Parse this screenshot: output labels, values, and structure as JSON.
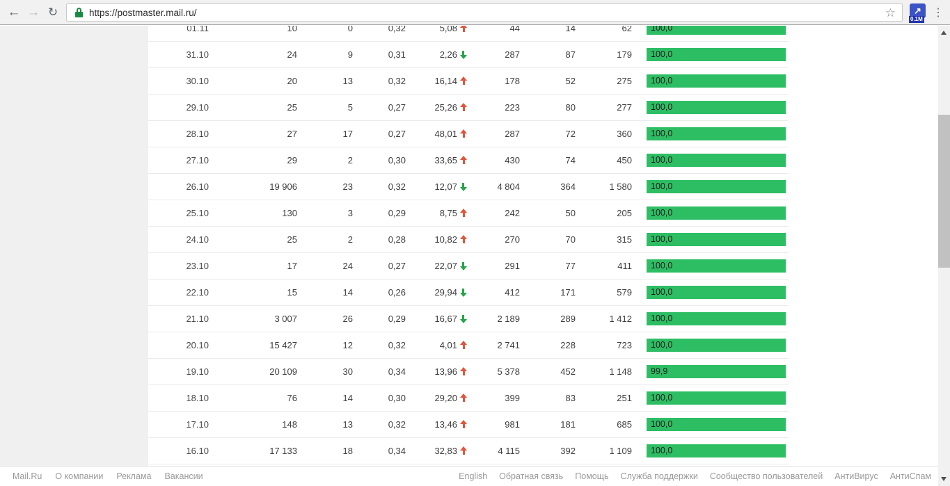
{
  "browser": {
    "url": "https://postmaster.mail.ru/",
    "extension_badge": "0.1M"
  },
  "colors": {
    "bar_green": "#2dbe64",
    "trend_up_red": "#e2543b",
    "trend_down_green": "#23a647"
  },
  "table": {
    "rows": [
      {
        "date": "01.11",
        "c2": "10",
        "c3": "0",
        "c4": "0,32",
        "pct": "5,08",
        "trend": "up",
        "c6": "44",
        "c7": "14",
        "c8": "62",
        "bar": "100,0"
      },
      {
        "date": "31.10",
        "c2": "24",
        "c3": "9",
        "c4": "0,31",
        "pct": "2,26",
        "trend": "down",
        "c6": "287",
        "c7": "87",
        "c8": "179",
        "bar": "100,0"
      },
      {
        "date": "30.10",
        "c2": "20",
        "c3": "13",
        "c4": "0,32",
        "pct": "16,14",
        "trend": "up",
        "c6": "178",
        "c7": "52",
        "c8": "275",
        "bar": "100,0"
      },
      {
        "date": "29.10",
        "c2": "25",
        "c3": "5",
        "c4": "0,27",
        "pct": "25,26",
        "trend": "up",
        "c6": "223",
        "c7": "80",
        "c8": "277",
        "bar": "100,0"
      },
      {
        "date": "28.10",
        "c2": "27",
        "c3": "17",
        "c4": "0,27",
        "pct": "48,01",
        "trend": "up",
        "c6": "287",
        "c7": "72",
        "c8": "360",
        "bar": "100,0"
      },
      {
        "date": "27.10",
        "c2": "29",
        "c3": "2",
        "c4": "0,30",
        "pct": "33,65",
        "trend": "up",
        "c6": "430",
        "c7": "74",
        "c8": "450",
        "bar": "100,0"
      },
      {
        "date": "26.10",
        "c2": "19 906",
        "c3": "23",
        "c4": "0,32",
        "pct": "12,07",
        "trend": "down",
        "c6": "4 804",
        "c7": "364",
        "c8": "1 580",
        "bar": "100,0"
      },
      {
        "date": "25.10",
        "c2": "130",
        "c3": "3",
        "c4": "0,29",
        "pct": "8,75",
        "trend": "up",
        "c6": "242",
        "c7": "50",
        "c8": "205",
        "bar": "100,0"
      },
      {
        "date": "24.10",
        "c2": "25",
        "c3": "2",
        "c4": "0,28",
        "pct": "10,82",
        "trend": "up",
        "c6": "270",
        "c7": "70",
        "c8": "315",
        "bar": "100,0"
      },
      {
        "date": "23.10",
        "c2": "17",
        "c3": "24",
        "c4": "0,27",
        "pct": "22,07",
        "trend": "down",
        "c6": "291",
        "c7": "77",
        "c8": "411",
        "bar": "100,0"
      },
      {
        "date": "22.10",
        "c2": "15",
        "c3": "14",
        "c4": "0,26",
        "pct": "29,94",
        "trend": "down",
        "c6": "412",
        "c7": "171",
        "c8": "579",
        "bar": "100,0"
      },
      {
        "date": "21.10",
        "c2": "3 007",
        "c3": "26",
        "c4": "0,29",
        "pct": "16,67",
        "trend": "down",
        "c6": "2 189",
        "c7": "289",
        "c8": "1 412",
        "bar": "100,0"
      },
      {
        "date": "20.10",
        "c2": "15 427",
        "c3": "12",
        "c4": "0,32",
        "pct": "4,01",
        "trend": "up",
        "c6": "2 741",
        "c7": "228",
        "c8": "723",
        "bar": "100,0"
      },
      {
        "date": "19.10",
        "c2": "20 109",
        "c3": "30",
        "c4": "0,34",
        "pct": "13,96",
        "trend": "up",
        "c6": "5 378",
        "c7": "452",
        "c8": "1 148",
        "bar": "99,9"
      },
      {
        "date": "18.10",
        "c2": "76",
        "c3": "14",
        "c4": "0,30",
        "pct": "29,20",
        "trend": "up",
        "c6": "399",
        "c7": "83",
        "c8": "251",
        "bar": "100,0"
      },
      {
        "date": "17.10",
        "c2": "148",
        "c3": "13",
        "c4": "0,32",
        "pct": "13,46",
        "trend": "up",
        "c6": "981",
        "c7": "181",
        "c8": "685",
        "bar": "100,0"
      },
      {
        "date": "16.10",
        "c2": "17 133",
        "c3": "18",
        "c4": "0,34",
        "pct": "32,83",
        "trend": "up",
        "c6": "4 115",
        "c7": "392",
        "c8": "1 109",
        "bar": "100,0"
      }
    ]
  },
  "footer": {
    "left": [
      "Mail.Ru",
      "О компании",
      "Реклама",
      "Вакансии"
    ],
    "right": [
      "English",
      "Обратная связь",
      "Помощь",
      "Служба поддержки",
      "Сообщество пользователей",
      "АнтиВирус",
      "АнтиСпам"
    ]
  }
}
